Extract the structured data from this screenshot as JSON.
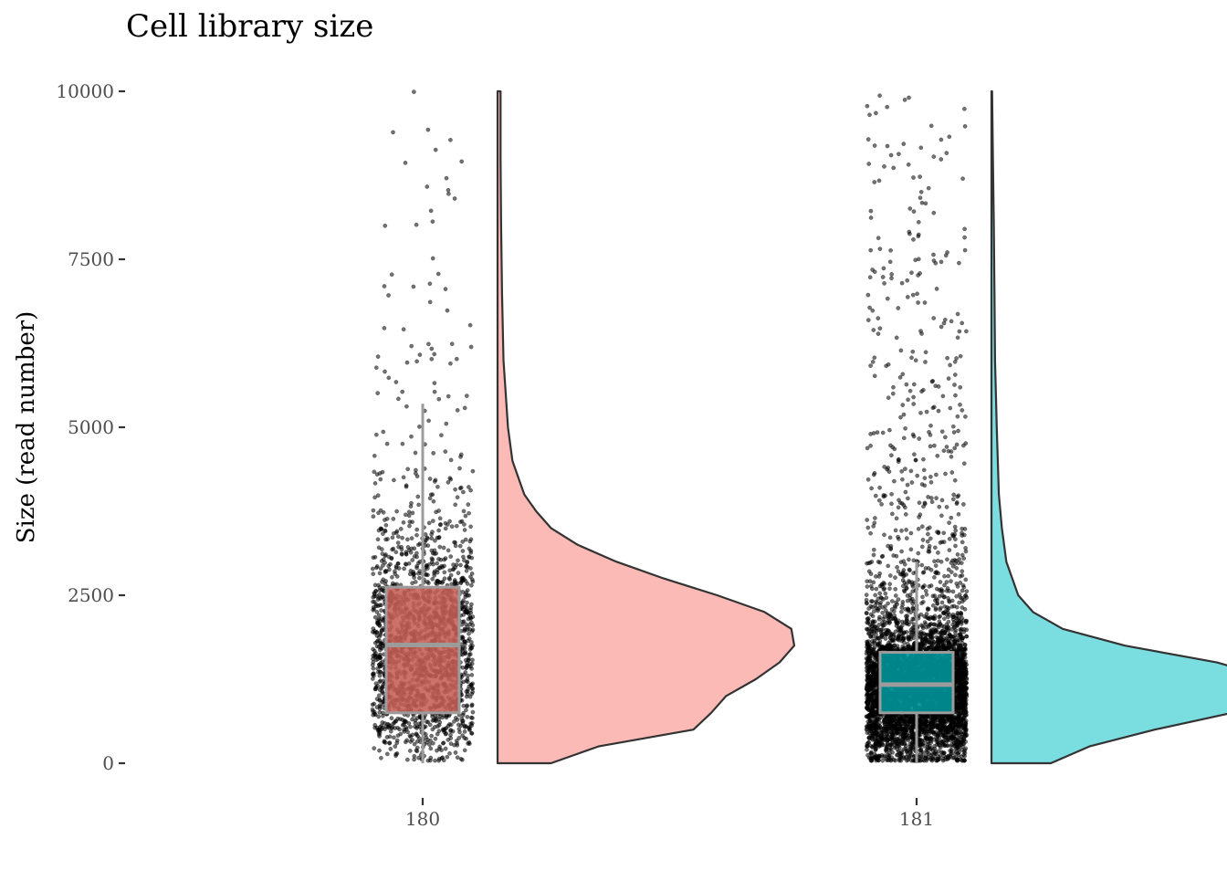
{
  "chart_data": {
    "type": "raincloud",
    "title": "Cell library size",
    "xlabel": "",
    "ylabel": "Size (read number)",
    "ylim": [
      0,
      10000
    ],
    "yticks": [
      0,
      2500,
      5000,
      7500,
      10000
    ],
    "grid": false,
    "legend": "none",
    "groups": [
      {
        "category": "180",
        "fill": "#f8766d",
        "box_fill": "#c65e57",
        "density_fill": "#fbbab6",
        "box": {
          "lower_whisker": 0,
          "q1": 750,
          "median": 1760,
          "q3": 2620,
          "upper_whisker": 5350
        },
        "density": [
          [
            0,
            0.18
          ],
          [
            250,
            0.34
          ],
          [
            500,
            0.66
          ],
          [
            750,
            0.72
          ],
          [
            1000,
            0.77
          ],
          [
            1250,
            0.87
          ],
          [
            1500,
            0.95
          ],
          [
            1750,
            1.0
          ],
          [
            2000,
            0.99
          ],
          [
            2250,
            0.9
          ],
          [
            2500,
            0.74
          ],
          [
            2750,
            0.56
          ],
          [
            3000,
            0.4
          ],
          [
            3250,
            0.27
          ],
          [
            3500,
            0.18
          ],
          [
            3750,
            0.13
          ],
          [
            4000,
            0.09
          ],
          [
            4500,
            0.05
          ],
          [
            5000,
            0.035
          ],
          [
            6000,
            0.02
          ],
          [
            7000,
            0.015
          ],
          [
            8000,
            0.012
          ],
          [
            9000,
            0.01
          ],
          [
            9700,
            0.01
          ],
          [
            10000,
            0.01
          ]
        ],
        "points_count": 1900
      },
      {
        "category": "181",
        "fill": "#00bfc4",
        "box_fill": "#00999d",
        "density_fill": "#7adde0",
        "box": {
          "lower_whisker": 0,
          "q1": 750,
          "median": 1170,
          "q3": 1650,
          "upper_whisker": 3000
        },
        "density": [
          [
            0,
            0.2
          ],
          [
            250,
            0.33
          ],
          [
            500,
            0.55
          ],
          [
            750,
            0.81
          ],
          [
            1000,
            0.97
          ],
          [
            1100,
            1.0
          ],
          [
            1250,
            0.96
          ],
          [
            1500,
            0.76
          ],
          [
            1750,
            0.45
          ],
          [
            2000,
            0.24
          ],
          [
            2250,
            0.14
          ],
          [
            2500,
            0.09
          ],
          [
            3000,
            0.05
          ],
          [
            3500,
            0.035
          ],
          [
            4000,
            0.025
          ],
          [
            5000,
            0.018
          ],
          [
            6000,
            0.012
          ],
          [
            7000,
            0.01
          ],
          [
            8000,
            0.008
          ],
          [
            9000,
            0.005
          ],
          [
            10000,
            0.002
          ]
        ],
        "points_count": 5200
      }
    ]
  }
}
